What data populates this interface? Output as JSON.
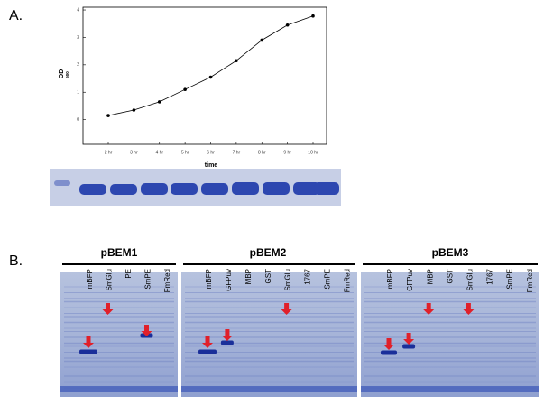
{
  "panel_a_label": "A.",
  "panel_b_label": "B.",
  "chart_data": {
    "type": "line",
    "x_label": "time",
    "y_label": "OD",
    "y_label_sub": "600",
    "categories": [
      "2 hr",
      "3 hr",
      "4 hr",
      "5 hr",
      "6 hr",
      "7 hr",
      "8 hr",
      "9 hr",
      "10 hr"
    ],
    "values": [
      0.15,
      0.35,
      0.65,
      1.1,
      1.55,
      2.15,
      2.9,
      3.45,
      3.78
    ],
    "color": "#000000",
    "ylim": [
      -0.9,
      4.1
    ],
    "yticks": [
      0,
      1,
      2,
      3,
      4
    ],
    "grid": false
  },
  "gels": [
    {
      "title": "pBEM1",
      "lanes": [
        "mBFP",
        "SmGlu",
        "PE",
        "SmPE",
        "FmRed"
      ]
    },
    {
      "title": "pBEM2",
      "lanes": [
        "mBFP",
        "GFPuv",
        "MBP",
        "GST",
        "SmGlu",
        "1767",
        "SmPE",
        "FmRed"
      ]
    },
    {
      "title": "pBEM3",
      "lanes": [
        "mBFP",
        "GFPuv",
        "MBP",
        "GST",
        "SmGlu",
        "1767",
        "SmPE",
        "FmRed"
      ]
    }
  ]
}
